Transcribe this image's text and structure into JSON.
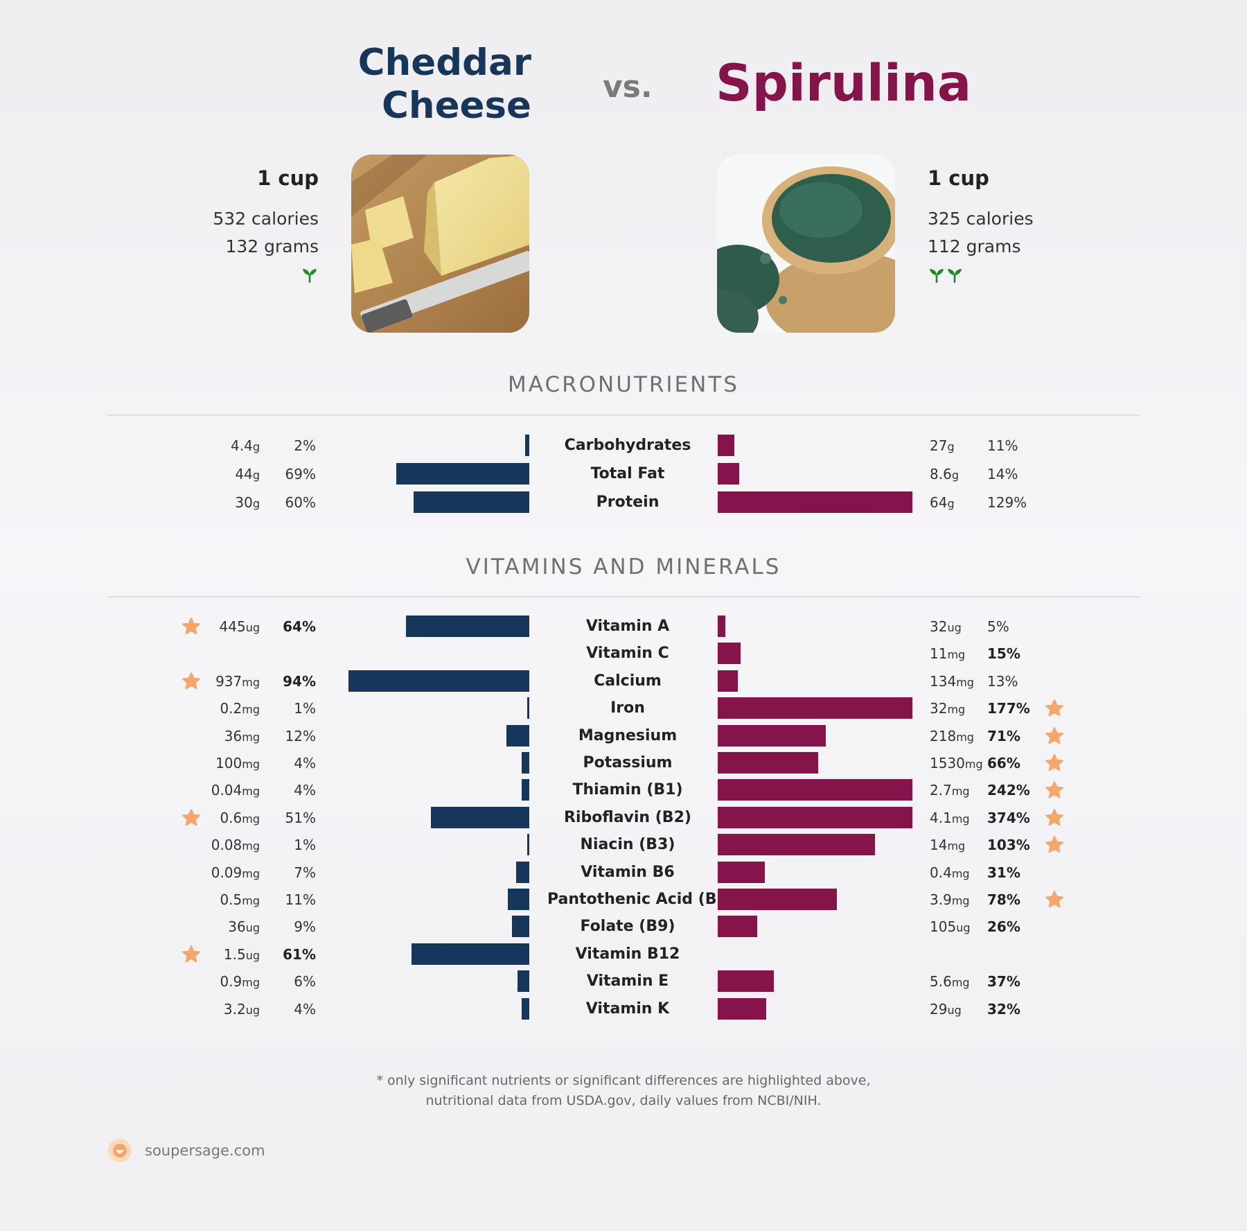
{
  "header": {
    "left_title_line1": "Cheddar",
    "left_title_line2": "Cheese",
    "vs": "vs.",
    "right_title": "Spirulina"
  },
  "foods": {
    "left": {
      "serving": "1 cup",
      "calories": "532 calories",
      "grams": "132 grams",
      "sprouts": 1
    },
    "right": {
      "serving": "1 cup",
      "calories": "325 calories",
      "grams": "112 grams",
      "sprouts": 2
    }
  },
  "colors": {
    "left": "#16365c",
    "right": "#84144a",
    "star": "#f6a66a"
  },
  "sections": {
    "macro": "MACRONUTRIENTS",
    "vitamins": "VITAMINS AND MINERALS"
  },
  "chart_data": {
    "type": "bar",
    "series": [
      {
        "name": "Cheddar Cheese"
      },
      {
        "name": "Spirulina"
      }
    ],
    "macronutrients": [
      {
        "name": "Carbohydrates",
        "left": {
          "amount": "4.4",
          "unit": "g",
          "pct": 2,
          "bold": false,
          "star": false
        },
        "right": {
          "amount": "27",
          "unit": "g",
          "pct": 11,
          "bold": false,
          "star": false
        }
      },
      {
        "name": "Total Fat",
        "left": {
          "amount": "44",
          "unit": "g",
          "pct": 69,
          "bold": false,
          "star": false
        },
        "right": {
          "amount": "8.6",
          "unit": "g",
          "pct": 14,
          "bold": false,
          "star": false
        }
      },
      {
        "name": "Protein",
        "left": {
          "amount": "30",
          "unit": "g",
          "pct": 60,
          "bold": false,
          "star": false
        },
        "right": {
          "amount": "64",
          "unit": "g",
          "pct": 129,
          "bold": false,
          "star": false
        }
      }
    ],
    "vitamins": [
      {
        "name": "Vitamin A",
        "left": {
          "amount": "445",
          "unit": "ug",
          "pct": 64,
          "bold": true,
          "star": true
        },
        "right": {
          "amount": "32",
          "unit": "ug",
          "pct": 5,
          "bold": false,
          "star": false
        }
      },
      {
        "name": "Vitamin C",
        "left": null,
        "right": {
          "amount": "11",
          "unit": "mg",
          "pct": 15,
          "bold": true,
          "star": false
        }
      },
      {
        "name": "Calcium",
        "left": {
          "amount": "937",
          "unit": "mg",
          "pct": 94,
          "bold": true,
          "star": true
        },
        "right": {
          "amount": "134",
          "unit": "mg",
          "pct": 13,
          "bold": false,
          "star": false
        }
      },
      {
        "name": "Iron",
        "left": {
          "amount": "0.2",
          "unit": "mg",
          "pct": 1,
          "bold": false,
          "star": false
        },
        "right": {
          "amount": "32",
          "unit": "mg",
          "pct": 177,
          "bold": true,
          "star": true
        }
      },
      {
        "name": "Magnesium",
        "left": {
          "amount": "36",
          "unit": "mg",
          "pct": 12,
          "bold": false,
          "star": false
        },
        "right": {
          "amount": "218",
          "unit": "mg",
          "pct": 71,
          "bold": true,
          "star": true
        }
      },
      {
        "name": "Potassium",
        "left": {
          "amount": "100",
          "unit": "mg",
          "pct": 4,
          "bold": false,
          "star": false
        },
        "right": {
          "amount": "1530",
          "unit": "mg",
          "pct": 66,
          "bold": true,
          "star": true
        }
      },
      {
        "name": "Thiamin (B1)",
        "left": {
          "amount": "0.04",
          "unit": "mg",
          "pct": 4,
          "bold": false,
          "star": false
        },
        "right": {
          "amount": "2.7",
          "unit": "mg",
          "pct": 242,
          "bold": true,
          "star": true
        }
      },
      {
        "name": "Riboflavin (B2)",
        "left": {
          "amount": "0.6",
          "unit": "mg",
          "pct": 51,
          "bold": false,
          "star": true
        },
        "right": {
          "amount": "4.1",
          "unit": "mg",
          "pct": 374,
          "bold": true,
          "star": true
        }
      },
      {
        "name": "Niacin (B3)",
        "left": {
          "amount": "0.08",
          "unit": "mg",
          "pct": 1,
          "bold": false,
          "star": false
        },
        "right": {
          "amount": "14",
          "unit": "mg",
          "pct": 103,
          "bold": true,
          "star": true
        }
      },
      {
        "name": "Vitamin B6",
        "left": {
          "amount": "0.09",
          "unit": "mg",
          "pct": 7,
          "bold": false,
          "star": false
        },
        "right": {
          "amount": "0.4",
          "unit": "mg",
          "pct": 31,
          "bold": true,
          "star": false
        }
      },
      {
        "name": "Pantothenic Acid (B5)",
        "left": {
          "amount": "0.5",
          "unit": "mg",
          "pct": 11,
          "bold": false,
          "star": false
        },
        "right": {
          "amount": "3.9",
          "unit": "mg",
          "pct": 78,
          "bold": true,
          "star": true
        }
      },
      {
        "name": "Folate (B9)",
        "left": {
          "amount": "36",
          "unit": "ug",
          "pct": 9,
          "bold": false,
          "star": false
        },
        "right": {
          "amount": "105",
          "unit": "ug",
          "pct": 26,
          "bold": true,
          "star": false
        }
      },
      {
        "name": "Vitamin B12",
        "left": {
          "amount": "1.5",
          "unit": "ug",
          "pct": 61,
          "bold": true,
          "star": true
        },
        "right": null
      },
      {
        "name": "Vitamin E",
        "left": {
          "amount": "0.9",
          "unit": "mg",
          "pct": 6,
          "bold": false,
          "star": false
        },
        "right": {
          "amount": "5.6",
          "unit": "mg",
          "pct": 37,
          "bold": true,
          "star": false
        }
      },
      {
        "name": "Vitamin K",
        "left": {
          "amount": "3.2",
          "unit": "ug",
          "pct": 4,
          "bold": false,
          "star": false
        },
        "right": {
          "amount": "29",
          "unit": "ug",
          "pct": 32,
          "bold": true,
          "star": false
        }
      }
    ]
  },
  "footer": {
    "note_line1": "* only significant nutrients or significant differences are highlighted above,",
    "note_line2": "nutritional data from USDA.gov, daily values from NCBI/NIH.",
    "brand": "soupersage.com"
  }
}
